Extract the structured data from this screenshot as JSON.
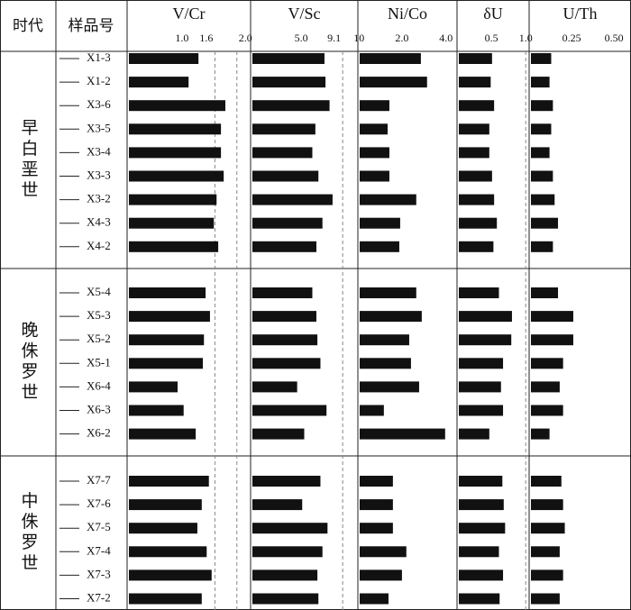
{
  "table": {
    "headers": [
      "时代",
      "样品号"
    ],
    "groups": [
      {
        "label": "早白垩世",
        "samples": [
          "X1-3",
          "X1-2",
          "X3-6",
          "X3-5",
          "X3-4",
          "X3-3",
          "X3-2",
          "X4-3",
          "X4-2"
        ]
      },
      {
        "label": "晚侏罗世",
        "samples": [
          "X5-4",
          "X5-3",
          "X5-2",
          "X5-1",
          "X6-4",
          "X6-3",
          "X6-2"
        ]
      },
      {
        "label": "中侏罗世",
        "samples": [
          "X7-7",
          "X7-6",
          "X7-5",
          "X7-4",
          "X7-3",
          "X7-2"
        ]
      }
    ]
  },
  "chart_data": [
    {
      "type": "bar",
      "title": "V/Cr",
      "color": "#111111",
      "xlim": [
        0,
        2.25
      ],
      "xticks": [
        {
          "value": 1,
          "label": "1.0"
        },
        1.6,
        {
          "value": 2,
          "label": "2.0"
        }
      ],
      "ref_lines": [
        1.6,
        2.0
      ],
      "values": [
        1.3,
        1.12,
        1.79,
        1.71,
        1.71,
        1.76,
        1.63,
        1.58,
        1.66,
        1.43,
        1.51,
        1.4,
        1.38,
        0.92,
        1.03,
        1.25,
        1.49,
        1.36,
        1.28,
        1.45,
        1.54,
        1.36
      ]
    },
    {
      "type": "bar",
      "title": "V/Sc",
      "color": "#111111",
      "xlim": [
        0,
        10.6
      ],
      "xticks": [
        {
          "value": 5,
          "label": "5.0"
        },
        9.1,
        10
      ],
      "ref_lines": [
        9.1
      ],
      "values": [
        7.3,
        7.4,
        7.8,
        6.4,
        6.1,
        6.7,
        8.1,
        7.1,
        6.5,
        6.1,
        6.5,
        6.6,
        6.9,
        4.6,
        7.5,
        5.3,
        6.9,
        5.1,
        7.6,
        7.1,
        6.6,
        6.7
      ]
    },
    {
      "type": "bar",
      "title": "Ni/Co",
      "color": "#111111",
      "xlim": [
        0,
        4.5
      ],
      "xticks": [
        {
          "value": 2,
          "label": "2.0"
        },
        {
          "value": 4,
          "label": "4.0"
        }
      ],
      "ref_lines": [],
      "values": [
        2.86,
        3.14,
        1.43,
        1.35,
        1.43,
        1.43,
        2.65,
        1.92,
        1.88,
        2.65,
        2.9,
        2.33,
        2.41,
        2.78,
        1.18,
        3.96,
        1.59,
        1.59,
        1.59,
        2.2,
        2.0,
        1.39
      ]
    },
    {
      "type": "bar",
      "title": "δU",
      "color": "#111111",
      "xlim": [
        0,
        1.05
      ],
      "xticks": [
        0.5,
        {
          "value": 1,
          "label": "1.0"
        }
      ],
      "ref_lines": [
        1.0
      ],
      "values": [
        0.51,
        0.49,
        0.54,
        0.47,
        0.47,
        0.51,
        0.54,
        0.58,
        0.53,
        0.61,
        0.8,
        0.79,
        0.67,
        0.64,
        0.67,
        0.47,
        0.66,
        0.68,
        0.7,
        0.61,
        0.67,
        0.62
      ]
    },
    {
      "type": "bar",
      "title": "U/Th",
      "color": "#111111",
      "xlim": [
        0,
        0.6
      ],
      "xticks": [
        0.25,
        {
          "value": 0.5,
          "label": "0.50"
        }
      ],
      "ref_lines": [],
      "values": [
        0.13,
        0.12,
        0.14,
        0.13,
        0.12,
        0.14,
        0.15,
        0.17,
        0.14,
        0.17,
        0.26,
        0.26,
        0.2,
        0.18,
        0.2,
        0.12,
        0.19,
        0.2,
        0.21,
        0.18,
        0.2,
        0.18
      ]
    }
  ]
}
